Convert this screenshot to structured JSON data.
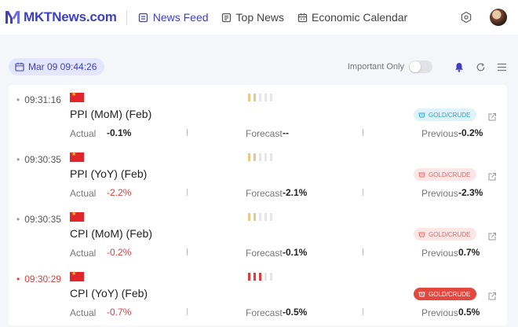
{
  "brand": {
    "name": "MKTNews.com",
    "color": "#3d3fc4"
  },
  "nav": [
    {
      "label": "News Feed",
      "icon": "news-feed-icon",
      "active": true
    },
    {
      "label": "Top News",
      "icon": "top-news-icon",
      "active": false
    },
    {
      "label": "Economic Calendar",
      "icon": "calendar-icon",
      "active": false
    }
  ],
  "toolbar": {
    "date": "Mar 09 09:44:26",
    "important_only_label": "Important Only",
    "important_only_on": false
  },
  "labels": {
    "actual": "Actual",
    "forecast": "Forecast",
    "previous": "Previous"
  },
  "items": [
    {
      "time": "09:31:16",
      "hot": false,
      "country": "china-flag",
      "importance": 2,
      "title": "PPI (MoM) (Feb)",
      "actual": "-0.1%",
      "actual_red": false,
      "forecast": "--",
      "previous": "-0.2%",
      "tag": "GOLD/CRUDE",
      "tag_style": "blue"
    },
    {
      "time": "09:30:35",
      "hot": false,
      "country": "china-flag",
      "importance": 2,
      "title": "PPI (YoY) (Feb)",
      "actual": "-2.2%",
      "actual_red": true,
      "forecast": "-2.1%",
      "previous": "-2.3%",
      "tag": "GOLD/CRUDE",
      "tag_style": "pink"
    },
    {
      "time": "09:30:35",
      "hot": false,
      "country": "china-flag",
      "importance": 2,
      "title": "CPI (MoM) (Feb)",
      "actual": "-0.2%",
      "actual_red": true,
      "forecast": "-0.1%",
      "previous": "0.7%",
      "tag": "GOLD/CRUDE",
      "tag_style": "pink"
    },
    {
      "time": "09:30:29",
      "hot": true,
      "country": "china-flag",
      "importance": 3,
      "title": "CPI (YoY) (Feb)",
      "actual": "-0.7%",
      "actual_red": true,
      "forecast": "-0.5%",
      "previous": "0.5%",
      "tag": "GOLD/CRUDE",
      "tag_style": "red"
    }
  ]
}
